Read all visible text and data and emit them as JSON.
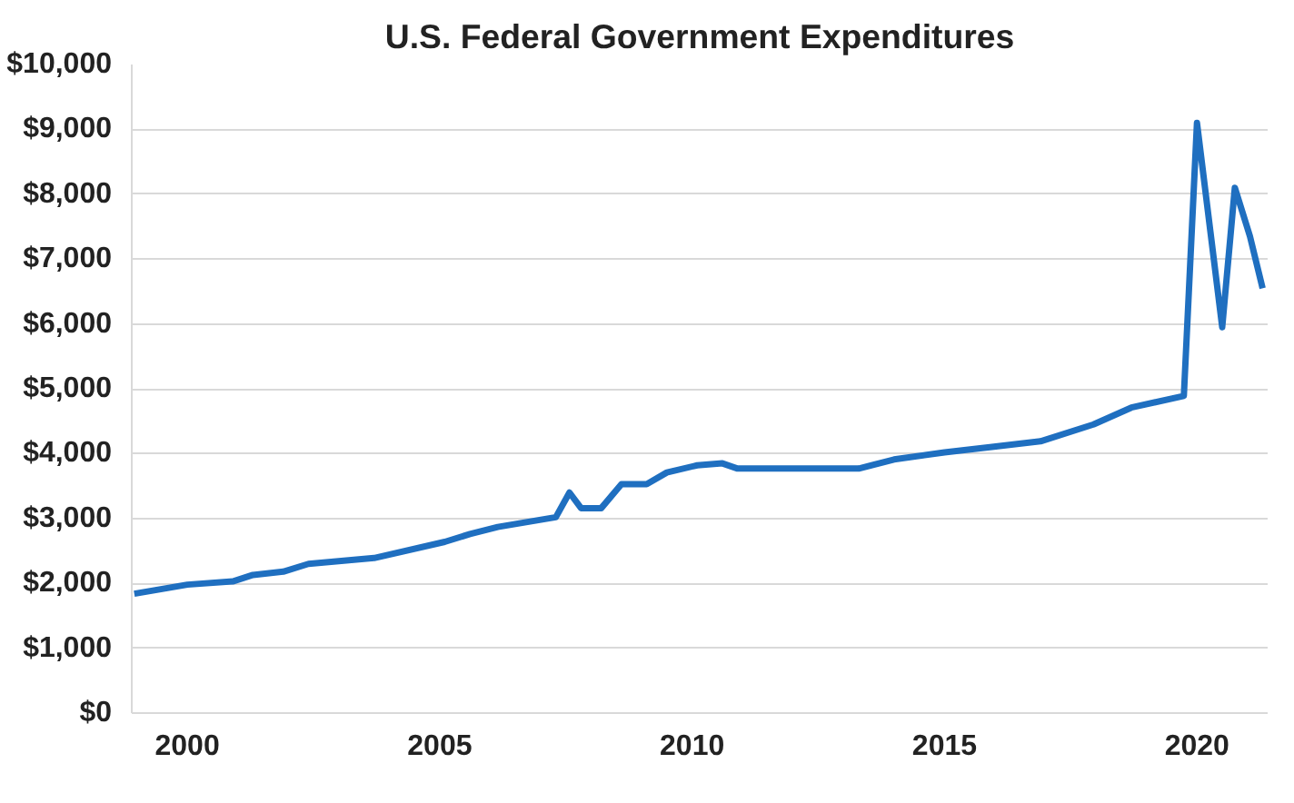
{
  "chart_data": {
    "type": "line",
    "title": "U.S. Federal Government Expenditures",
    "x": [
      1998.95,
      2000.0,
      2000.9,
      2001.3,
      2001.9,
      2002.4,
      2003.7,
      2005.1,
      2005.6,
      2006.15,
      2007.3,
      2007.57,
      2007.8,
      2008.2,
      2008.6,
      2009.1,
      2009.5,
      2010.1,
      2010.6,
      2010.9,
      2013.3,
      2014.0,
      2015.0,
      2015.9,
      2016.9,
      2017.95,
      2018.7,
      2019.74,
      2020.0,
      2020.5,
      2020.75,
      2021.05,
      2021.3
    ],
    "series": [
      {
        "color": "#1f6fc0",
        "values": [
          1840,
          1980,
          2030,
          2130,
          2180,
          2300,
          2390,
          2640,
          2760,
          2870,
          3020,
          3400,
          3160,
          3160,
          3530,
          3530,
          3710,
          3820,
          3850,
          3770,
          3770,
          3910,
          4020,
          4100,
          4190,
          4450,
          4710,
          4890,
          9100,
          5950,
          8100,
          7350,
          6550
        ]
      }
    ],
    "xlim": [
      1998.9,
      2021.4
    ],
    "xticks": [
      2000,
      2005,
      2010,
      2015,
      2020
    ],
    "ylim": [
      0,
      10000
    ],
    "yticks": [
      {
        "value": 0,
        "label": "$0"
      },
      {
        "value": 1000,
        "label": "$1,000"
      },
      {
        "value": 2000,
        "label": "$2,000"
      },
      {
        "value": 3000,
        "label": "$3,000"
      },
      {
        "value": 4000,
        "label": "$4,000"
      },
      {
        "value": 5000,
        "label": "$5,000"
      },
      {
        "value": 6000,
        "label": "$6,000"
      },
      {
        "value": 7000,
        "label": "$7,000"
      },
      {
        "value": 8000,
        "label": "$8,000"
      },
      {
        "value": 9000,
        "label": "$9,000"
      },
      {
        "value": 10000,
        "label": "$10,000"
      }
    ],
    "grid": "y",
    "marker": "none",
    "line_style": "solid"
  }
}
